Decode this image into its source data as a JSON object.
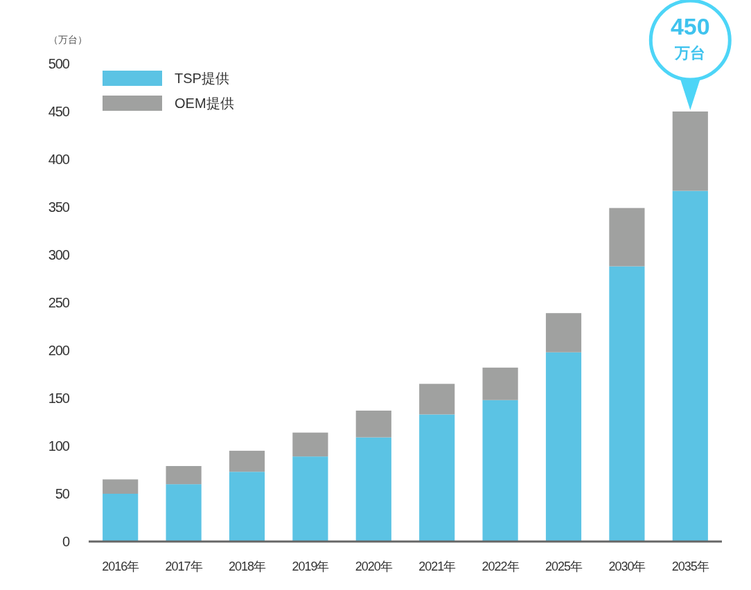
{
  "chart_data": {
    "type": "bar",
    "stacked": true,
    "ylabel": "（万台）",
    "categories": [
      "2016年",
      "2017年",
      "2018年",
      "2019年",
      "2020年",
      "2021年",
      "2022年",
      "2025年",
      "2030年",
      "2035年"
    ],
    "series": [
      {
        "name": "TSP提供",
        "color": "#5bc3e4",
        "values": [
          50,
          60,
          73,
          89,
          109,
          133,
          148,
          198,
          288,
          367
        ]
      },
      {
        "name": "OEM提供",
        "color": "#a0a1a0",
        "values": [
          15,
          19,
          22,
          25,
          28,
          32,
          34,
          41,
          61,
          83
        ]
      }
    ],
    "ylim": [
      0,
      500
    ],
    "yticks": [
      0,
      50,
      100,
      150,
      200,
      250,
      300,
      350,
      400,
      450,
      500
    ],
    "grid": false,
    "legend": "top left",
    "annotations": [
      {
        "text": "450\n万台",
        "x": "2035年",
        "y": 450
      }
    ]
  }
}
